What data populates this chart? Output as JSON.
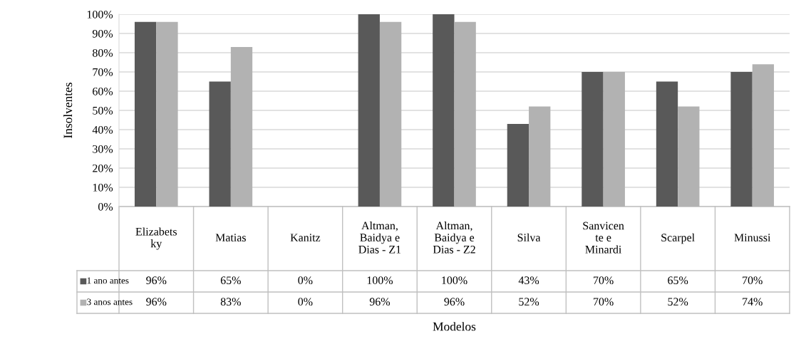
{
  "chart_data": {
    "type": "bar",
    "categories": [
      "Elizabets\nky",
      "Matias",
      "Kanitz",
      "Altman,\nBaidya e\nDias - Z1",
      "Altman,\nBaidya e\nDias - Z2",
      "Silva",
      "Sanvicen\nte e\nMinardi",
      "Scarpel",
      "Minussi"
    ],
    "series": [
      {
        "name": "1 ano antes",
        "color": "#595959",
        "values": [
          96,
          65,
          0,
          100,
          100,
          43,
          70,
          65,
          70
        ],
        "value_labels": [
          "96%",
          "65%",
          "0%",
          "100%",
          "100%",
          "43%",
          "70%",
          "65%",
          "70%"
        ]
      },
      {
        "name": "3 anos antes",
        "color": "#b2b2b2",
        "values": [
          96,
          83,
          0,
          96,
          96,
          52,
          70,
          52,
          74
        ],
        "value_labels": [
          "96%",
          "83%",
          "0%",
          "96%",
          "96%",
          "52%",
          "70%",
          "52%",
          "74%"
        ]
      }
    ],
    "ylim": [
      0,
      100
    ],
    "yticks": [
      {
        "value": 0,
        "label": "0%"
      },
      {
        "value": 10,
        "label": "10%"
      },
      {
        "value": 20,
        "label": "20%"
      },
      {
        "value": 30,
        "label": "30%"
      },
      {
        "value": 40,
        "label": "40%"
      },
      {
        "value": 50,
        "label": "50%"
      },
      {
        "value": 60,
        "label": "60%"
      },
      {
        "value": 70,
        "label": "70%"
      },
      {
        "value": 80,
        "label": "80%"
      },
      {
        "value": 90,
        "label": "90%"
      },
      {
        "value": 100,
        "label": "100%"
      }
    ],
    "annotations": [
      "Modelos"
    ],
    "ylabel": "Insolventes",
    "grid": "y",
    "legend": "bottom"
  }
}
